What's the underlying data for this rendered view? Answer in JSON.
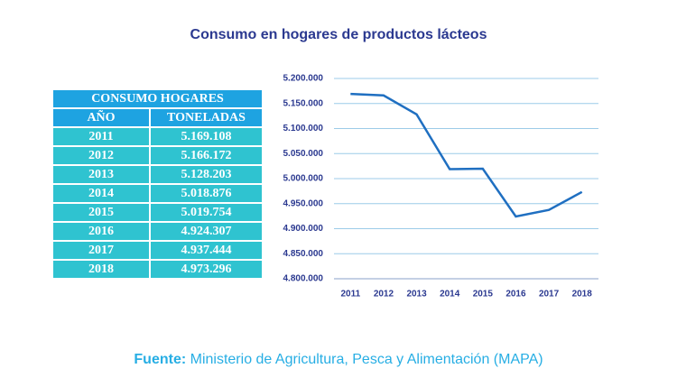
{
  "title": "Consumo en hogares de productos lácteos",
  "table": {
    "title": "CONSUMO HOGARES",
    "columns": [
      "AÑO",
      "TONELADAS"
    ],
    "rows": [
      [
        "2011",
        "5.169.108"
      ],
      [
        "2012",
        "5.166.172"
      ],
      [
        "2013",
        "5.128.203"
      ],
      [
        "2014",
        "5.018.876"
      ],
      [
        "2015",
        "5.019.754"
      ],
      [
        "2016",
        "4.924.307"
      ],
      [
        "2017",
        "4.937.444"
      ],
      [
        "2018",
        "4.973.296"
      ]
    ]
  },
  "chart_data": {
    "type": "line",
    "categories": [
      "2011",
      "2012",
      "2013",
      "2014",
      "2015",
      "2016",
      "2017",
      "2018"
    ],
    "values": [
      5169108,
      5166172,
      5128203,
      5018876,
      5019754,
      4924307,
      4937444,
      4973296
    ],
    "color": "#1f6fc1",
    "ylim": [
      4800000,
      5200000
    ],
    "yticks": [
      {
        "value": 4800000,
        "label": "4.800.000"
      },
      {
        "value": 4850000,
        "label": "4.850.000"
      },
      {
        "value": 4900000,
        "label": "4.900.000"
      },
      {
        "value": 4950000,
        "label": "4.950.000"
      },
      {
        "value": 5000000,
        "label": "5.000.000"
      },
      {
        "value": 5050000,
        "label": "5.050.000"
      },
      {
        "value": 5100000,
        "label": "5.100.000"
      },
      {
        "value": 5150000,
        "label": "5.150.000"
      },
      {
        "value": 5200000,
        "label": "5.200.000"
      }
    ],
    "grid": true
  },
  "source": {
    "label": "Fuente:",
    "text": "Ministerio de Agricultura, Pesca y Alimentación (MAPA)"
  }
}
